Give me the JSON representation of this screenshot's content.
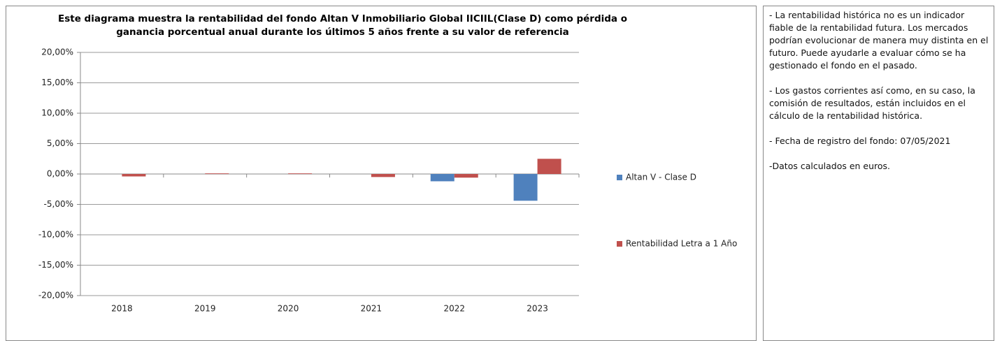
{
  "chart_data": {
    "type": "bar",
    "title": "Este diagrama muestra la rentabilidad del fondo Altan V Inmobiliario Global IICIIL(Clase D) como pérdida o ganancia porcentual anual durante los últimos 5 años frente a su valor de referencia",
    "categories": [
      "2018",
      "2019",
      "2020",
      "2021",
      "2022",
      "2023"
    ],
    "series": [
      {
        "name": "Altan V - Clase D",
        "color": "#4f81bd",
        "values": [
          null,
          null,
          null,
          null,
          -1.2,
          -4.4
        ]
      },
      {
        "name": "Rentabilidad Letra a 1 Año",
        "color": "#c0504d",
        "values": [
          -0.4,
          0.1,
          0.1,
          -0.5,
          -0.6,
          2.5
        ]
      }
    ],
    "ylim": [
      -20,
      20
    ],
    "yticks": [
      {
        "value": 20,
        "label": "20,00%"
      },
      {
        "value": 15,
        "label": "15,00%"
      },
      {
        "value": 10,
        "label": "10,00%"
      },
      {
        "value": 5,
        "label": "5,00%"
      },
      {
        "value": 0,
        "label": "0,00%"
      },
      {
        "value": -5,
        "label": "-5,00%"
      },
      {
        "value": -10,
        "label": "-10,00%"
      },
      {
        "value": -15,
        "label": "-15,00%"
      },
      {
        "value": -20,
        "label": "-20,00%"
      }
    ],
    "grid": true
  },
  "notes": [
    "- La rentabilidad histórica no es un indicador fiable de la rentabilidad futura. Los mercados podrían evolucionar de manera muy distinta en el futuro. Puede ayudarle a evaluar cómo se ha gestionado el fondo en el pasado.",
    "- Los gastos corrientes así como, en su caso, la comisión de resultados, están incluidos en el cálculo de la rentabilidad histórica.",
    "- Fecha de registro del fondo: 07/05/2021",
    "-Datos calculados en euros."
  ]
}
